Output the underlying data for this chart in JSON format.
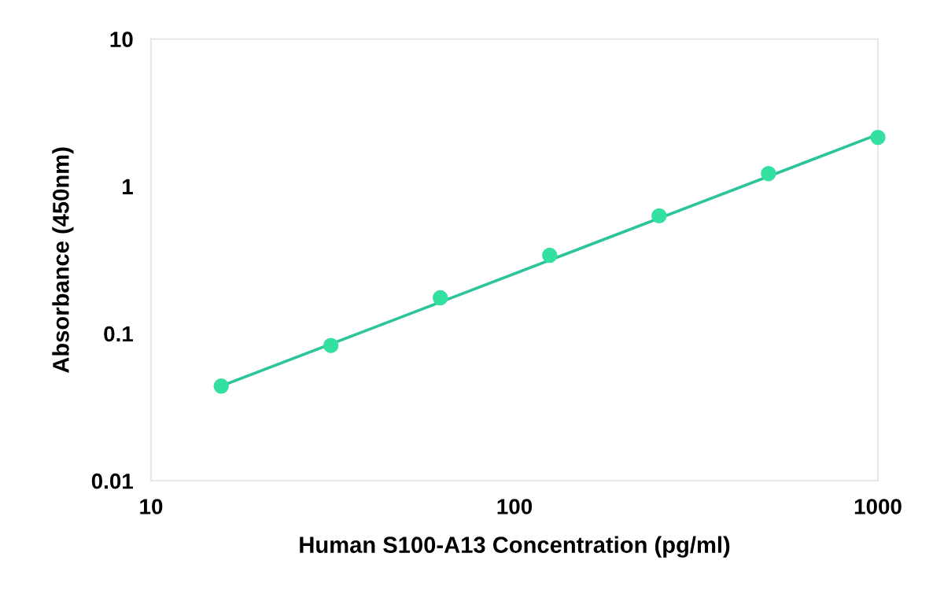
{
  "chart_data": {
    "type": "scatter",
    "xlabel": "Human S100-A13 Concentration (pg/ml)",
    "ylabel": "Absorbance (450nm)",
    "log": "xy",
    "xlim": [
      10,
      1000
    ],
    "xticks": [
      10,
      100,
      1000
    ],
    "ylim": [
      0.01,
      10
    ],
    "yticks": [
      0.01,
      0.1,
      1,
      10
    ],
    "grid": false,
    "series": [
      {
        "marker": "circle",
        "color": "#33e0a0",
        "x": [
          15.6,
          31.25,
          62.5,
          125,
          250,
          500,
          1000
        ],
        "values": [
          0.044,
          0.083,
          0.175,
          0.34,
          0.63,
          1.22,
          2.15
        ]
      },
      {
        "type": "line",
        "marker": "none",
        "color": "#2cc49a",
        "x": [
          15.6,
          1000
        ],
        "values": [
          0.044,
          2.25
        ]
      }
    ]
  }
}
